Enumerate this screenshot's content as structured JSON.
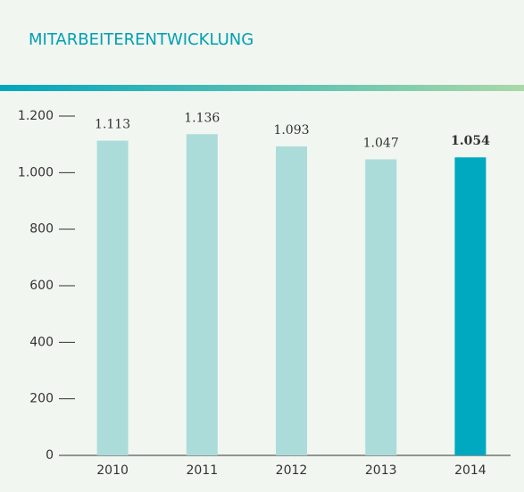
{
  "chart_data": {
    "type": "bar",
    "title": "MITARBEITERENTWICKLUNG",
    "categories": [
      "2010",
      "2011",
      "2012",
      "2013",
      "2014"
    ],
    "values": [
      1113,
      1136,
      1093,
      1047,
      1054
    ],
    "value_labels": [
      "1.113",
      "1.136",
      "1.093",
      "1.047",
      "1.054"
    ],
    "colors": [
      "#acdcd9",
      "#acdcd9",
      "#acdcd9",
      "#acdcd9",
      "#00a9c0"
    ],
    "ylim": [
      0,
      1200
    ],
    "yticks": [
      0,
      200,
      400,
      600,
      800,
      {
        "value": 1000,
        "label": "1.000"
      },
      {
        "value": 1200,
        "label": "1.200"
      }
    ]
  }
}
